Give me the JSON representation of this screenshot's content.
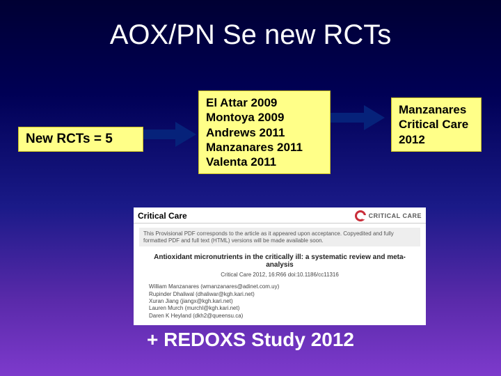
{
  "title": "AOX/PN Se new RCTs",
  "box1": {
    "text": "New RCTs = 5"
  },
  "box2": {
    "lines": [
      "El Attar 2009",
      "Montoya 2009",
      "Andrews 2011",
      "Manzanares 2011",
      "Valenta 2011"
    ]
  },
  "box3": {
    "lines": [
      "Manzanares",
      "Critical Care",
      "2012"
    ]
  },
  "pdf": {
    "brand": "Critical Care",
    "badge_label": "CRITICAL CARE",
    "note": "This Provisional PDF corresponds to the article as it appeared upon acceptance. Copyedited and fully formatted PDF and full text (HTML) versions will be made available soon.",
    "article_title": "Antioxidant micronutrients in the critically ill: a systematic review and meta-analysis",
    "meta": "Critical Care 2012, 16:R66   doi:10.1186/cc11316",
    "authors": "William Manzanares (wmanzanares@adinet.com.uy)\nRupinder Dhaliwal (dhaliwar@kgh.kari.net)\nXuran Jiang (jiangx@kgh.kari.net)\nLauren Murch (murchl@kgh.kari.net)\nDaren K Heyland (dkh2@queensu.ca)"
  },
  "footer": "+ REDOXS Study 2012",
  "colors": {
    "yellow_box_bg": "#ffff88",
    "arrow_fill": "#06227a",
    "cc_red": "#c92d39"
  }
}
